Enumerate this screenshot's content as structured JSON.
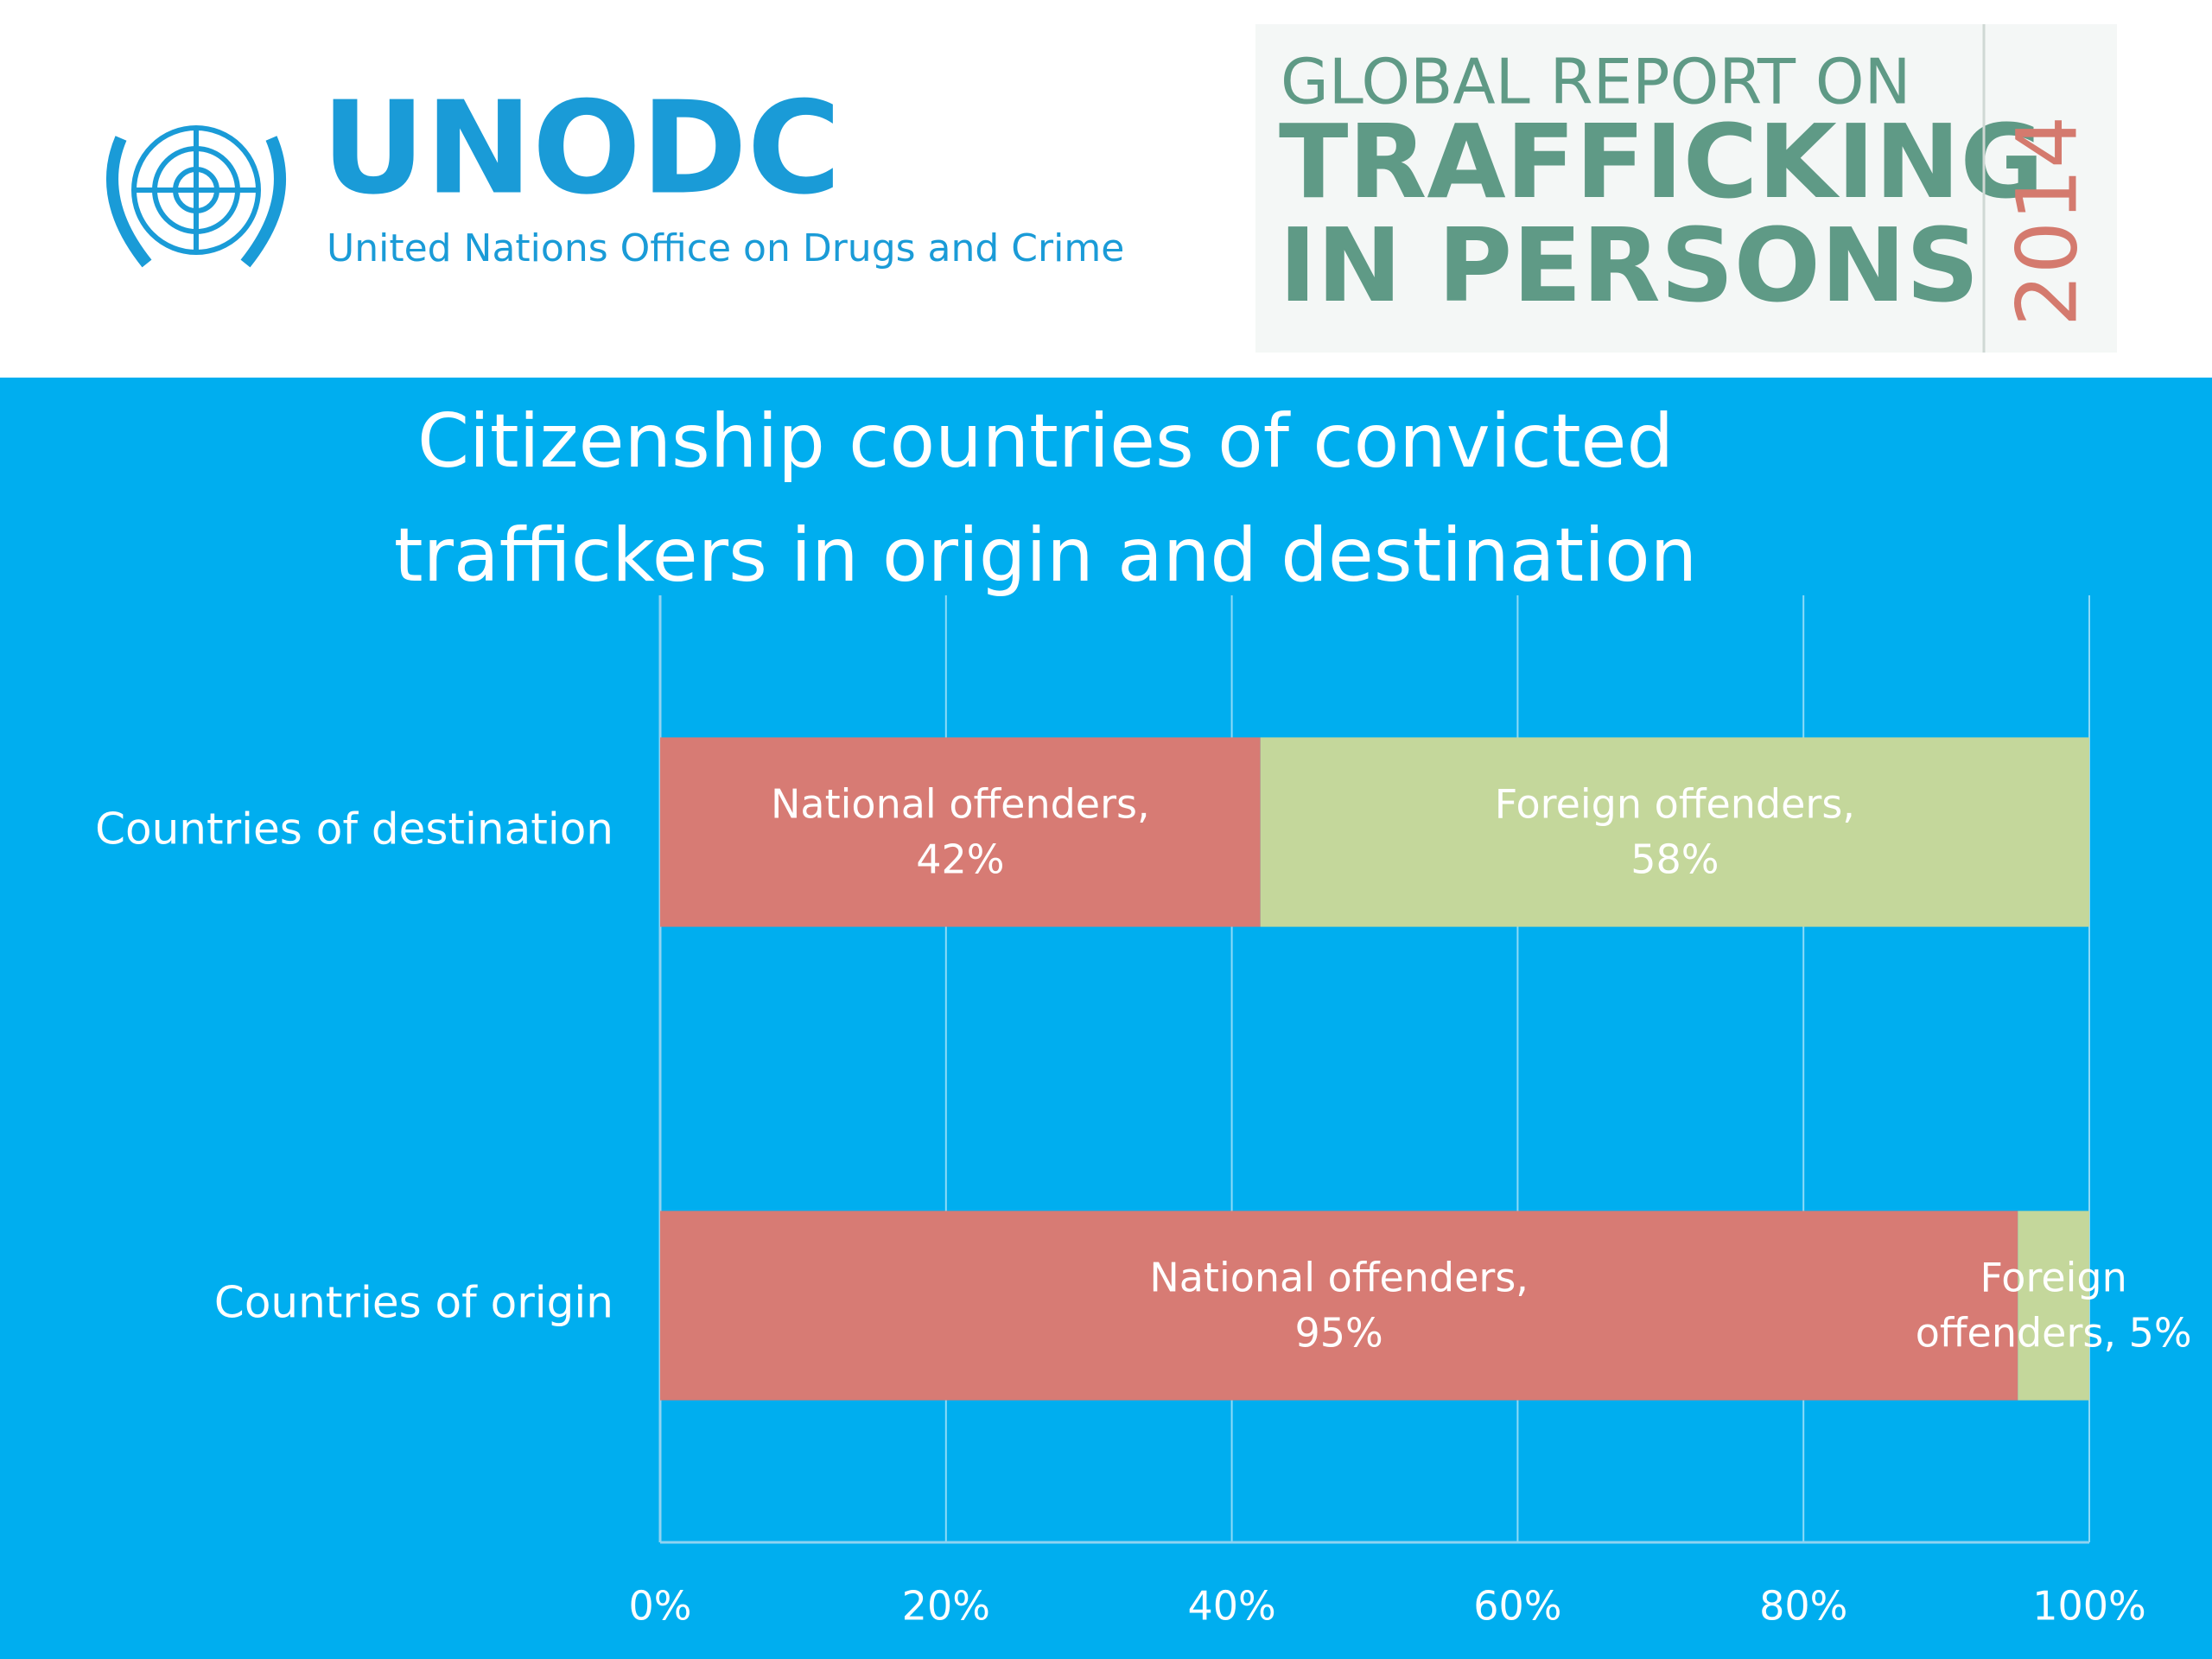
{
  "header": {
    "org": "UNODC",
    "org_full": "United Nations Office on Drugs and Crime",
    "report_line1": "GLOBAL REPORT ON",
    "report_line2": "TRAFFICKING",
    "report_line3": "IN PERSONS",
    "report_year": "2014"
  },
  "chart_data": {
    "type": "stacked-barh",
    "title": "Citizenship countries of convicted traffickers in origin and destination",
    "categories": [
      "Countries of destination",
      "Countries of origin"
    ],
    "series": [
      {
        "color": "#d77b74",
        "values": [
          42,
          95
        ],
        "value_labels": [
          "National offenders, 42%",
          "National offenders, 95%"
        ]
      },
      {
        "color": "#c4d79b",
        "values": [
          58,
          5
        ],
        "value_labels": [
          "Foreign offenders, 58%",
          "Foreign offenders, 5%"
        ]
      }
    ],
    "xlim": [
      0,
      100
    ],
    "xticks": [
      {
        "value": 0,
        "label": "0%"
      },
      {
        "value": 20,
        "label": "20%"
      },
      {
        "value": 40,
        "label": "40%"
      },
      {
        "value": 60,
        "label": "60%"
      },
      {
        "value": 80,
        "label": "80%"
      },
      {
        "value": 100,
        "label": "100%"
      }
    ],
    "grid": true
  }
}
